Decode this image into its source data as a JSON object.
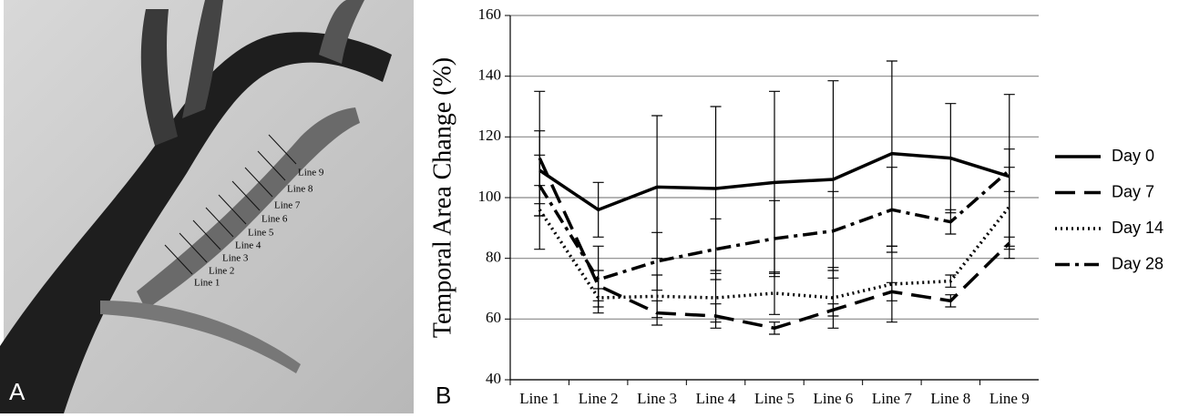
{
  "image_panel": {
    "label": "A",
    "line_labels": [
      "Line 1",
      "Line 2",
      "Line 3",
      "Line 4",
      "Line 5",
      "Line 6",
      "Line 7",
      "Line 8",
      "Line 9"
    ]
  },
  "chart_data": {
    "type": "line",
    "panel_label": "B",
    "ylabel": "Temporal Area Change (%)",
    "categories": [
      "Line 1",
      "Line 2",
      "Line 3",
      "Line 4",
      "Line 5",
      "Line 6",
      "Line 7",
      "Line 8",
      "Line 9"
    ],
    "series": [
      {
        "name": "Day 0",
        "color": "#000000",
        "line_style": "solid",
        "values": [
          109,
          96,
          103.5,
          103,
          105,
          106,
          114.5,
          113,
          107
        ],
        "errors": [
          26,
          9,
          23.5,
          27,
          30,
          32.5,
          30.5,
          18,
          27
        ]
      },
      {
        "name": "Day 7",
        "color": "#000000",
        "line_style": "long-dash",
        "values": [
          113,
          71,
          62,
          61,
          57,
          63,
          69,
          66,
          85
        ],
        "errors": [
          9,
          5,
          4,
          4,
          2,
          2,
          3,
          2,
          2
        ]
      },
      {
        "name": "Day 14",
        "color": "#000000",
        "line_style": "dotted",
        "values": [
          96,
          67,
          67.5,
          67,
          68.5,
          67,
          71.5,
          72.5,
          97
        ],
        "errors": [
          2,
          3,
          7,
          8,
          7,
          10,
          12.5,
          2,
          13
        ]
      },
      {
        "name": "Day 28",
        "color": "#000000",
        "line_style": "dash-dot",
        "values": [
          104,
          73,
          79,
          83,
          86.5,
          89,
          96,
          92,
          109
        ],
        "errors": [
          10,
          11,
          9.5,
          10,
          12.5,
          13,
          14,
          4,
          7
        ]
      }
    ],
    "ylim": [
      40,
      160
    ],
    "yticks": [
      40,
      60,
      80,
      100,
      120,
      140,
      160
    ],
    "grid": true,
    "legend": "right"
  }
}
